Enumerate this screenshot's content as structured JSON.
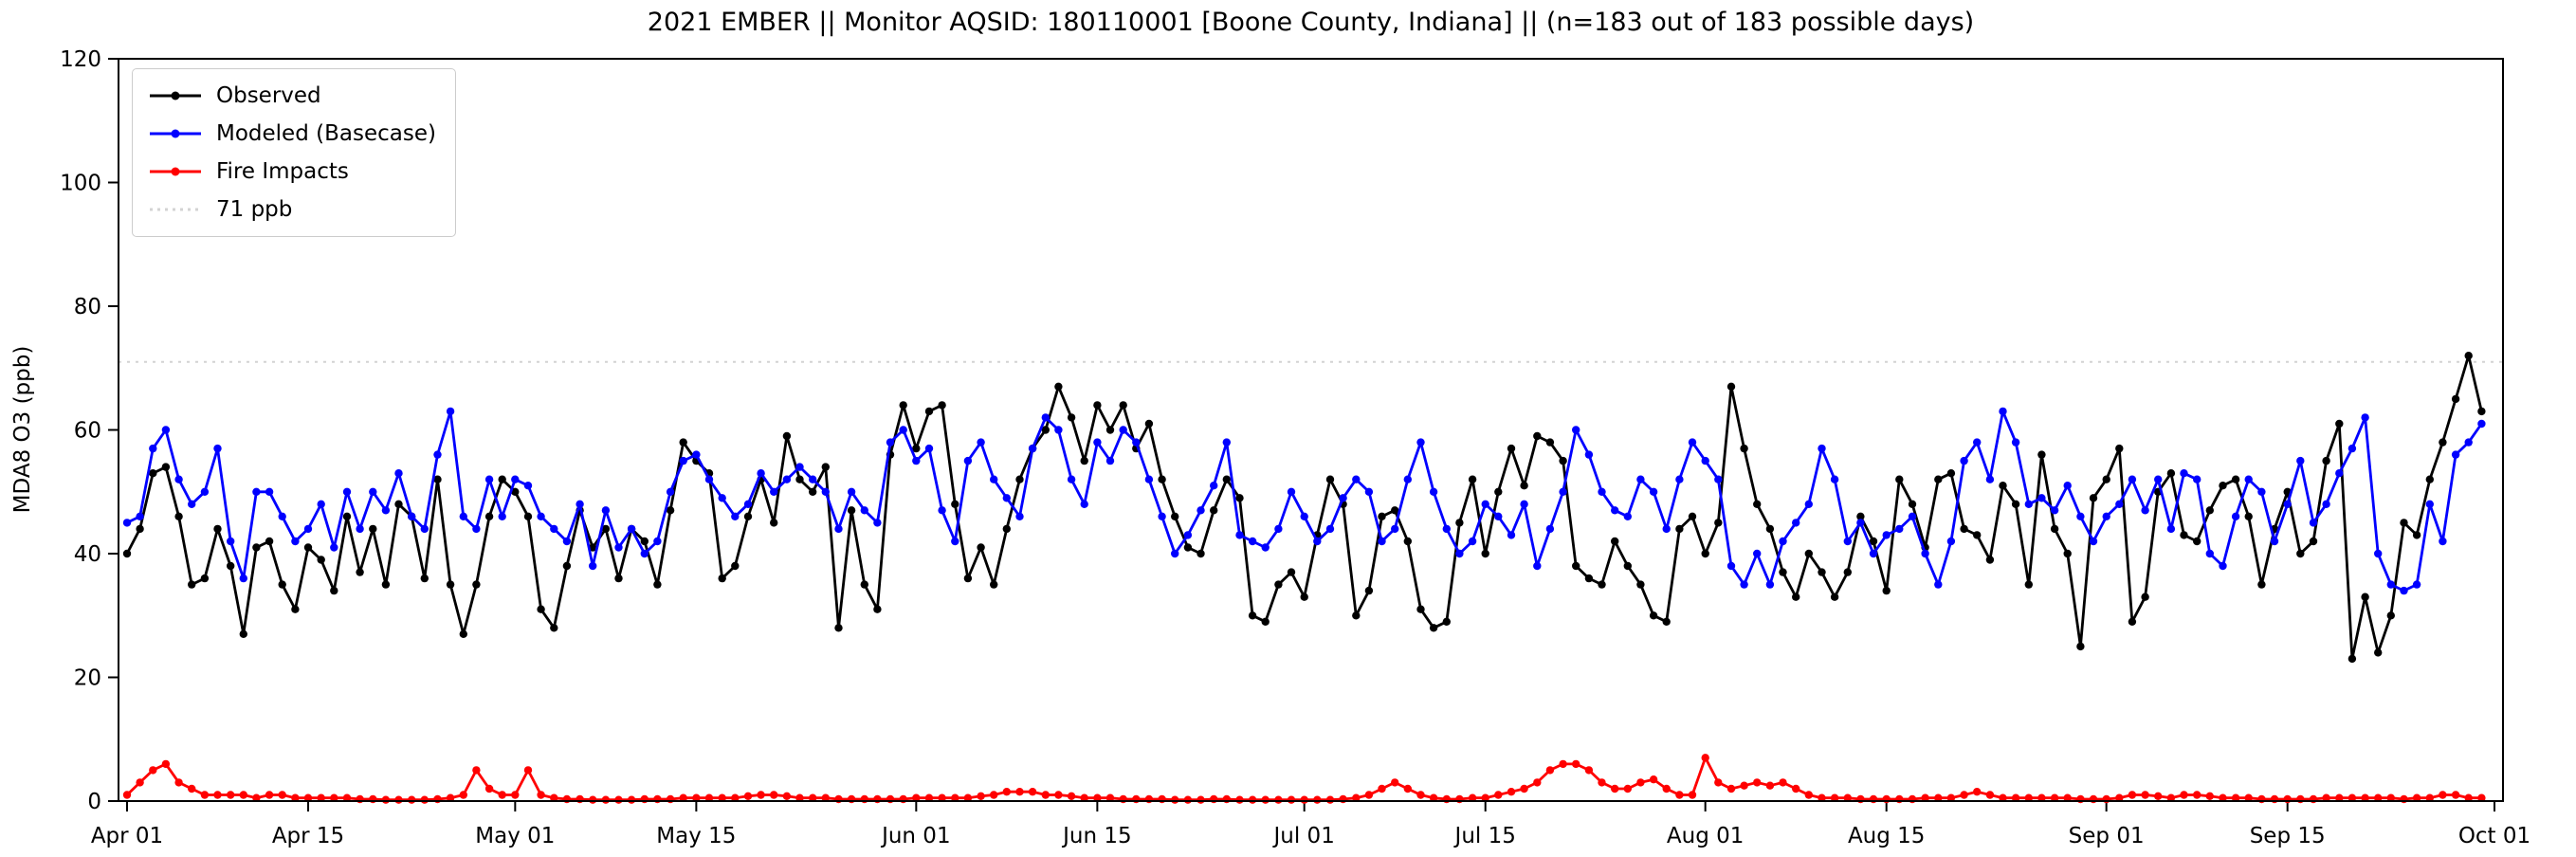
{
  "chart_data": {
    "type": "line",
    "title": "2021 EMBER || Monitor AQSID: 180110001 [Boone County, Indiana] || (n=183 out of 183 possible days)",
    "xlabel": "",
    "ylabel": "MDA8 O3 (ppb)",
    "ylim": [
      0,
      120
    ],
    "yticks": [
      0,
      20,
      40,
      60,
      80,
      100,
      120
    ],
    "n_days": 183,
    "x_unit": "days from Apr 01 to Oct 01, 2021",
    "grid": false,
    "marker": "circle",
    "legend_position": "upper left",
    "xticks": [
      {
        "day": 0,
        "label": "Apr 01"
      },
      {
        "day": 14,
        "label": "Apr 15"
      },
      {
        "day": 30,
        "label": "May 01"
      },
      {
        "day": 44,
        "label": "May 15"
      },
      {
        "day": 61,
        "label": "Jun 01"
      },
      {
        "day": 75,
        "label": "Jun 15"
      },
      {
        "day": 91,
        "label": "Jul 01"
      },
      {
        "day": 105,
        "label": "Jul 15"
      },
      {
        "day": 122,
        "label": "Aug 01"
      },
      {
        "day": 136,
        "label": "Aug 15"
      },
      {
        "day": 153,
        "label": "Sep 01"
      },
      {
        "day": 167,
        "label": "Sep 15"
      },
      {
        "day": 183,
        "label": "Oct 01"
      }
    ],
    "threshold_line": {
      "value": 71,
      "label": "71 ppb",
      "color": "#d3d3d3",
      "style": "dotted"
    },
    "legend": [
      {
        "label": "Observed",
        "color": "#000000",
        "line": "solid",
        "marker": true
      },
      {
        "label": "Modeled (Basecase)",
        "color": "#0000ff",
        "line": "solid",
        "marker": true
      },
      {
        "label": "Fire Impacts",
        "color": "#ff0000",
        "line": "solid",
        "marker": true
      },
      {
        "label": "71 ppb",
        "color": "#d3d3d3",
        "line": "dotted",
        "marker": false
      }
    ],
    "series": [
      {
        "name": "Observed",
        "color": "#000000",
        "values": [
          40,
          44,
          53,
          54,
          46,
          35,
          36,
          44,
          38,
          27,
          41,
          42,
          35,
          31,
          41,
          39,
          34,
          46,
          37,
          44,
          35,
          48,
          46,
          36,
          52,
          35,
          27,
          35,
          46,
          52,
          50,
          46,
          31,
          28,
          38,
          47,
          41,
          44,
          36,
          44,
          42,
          35,
          47,
          58,
          55,
          53,
          36,
          38,
          46,
          52,
          45,
          59,
          52,
          50,
          54,
          28,
          47,
          35,
          31,
          56,
          64,
          57,
          63,
          64,
          48,
          36,
          41,
          35,
          44,
          52,
          57,
          60,
          67,
          62,
          55,
          64,
          60,
          64,
          57,
          61,
          52,
          46,
          41,
          40,
          47,
          52,
          49,
          30,
          29,
          35,
          37,
          33,
          43,
          52,
          48,
          30,
          34,
          46,
          47,
          42,
          31,
          28,
          29,
          45,
          52,
          40,
          50,
          57,
          51,
          59,
          58,
          55,
          38,
          36,
          35,
          42,
          38,
          35,
          30,
          29,
          44,
          46,
          40,
          45,
          67,
          57,
          48,
          44,
          37,
          33,
          40,
          37,
          33,
          37,
          46,
          42,
          34,
          52,
          48,
          41,
          52,
          53,
          44,
          43,
          39,
          51,
          48,
          35,
          56,
          44,
          40,
          25,
          49,
          52,
          57,
          29,
          33,
          50,
          53,
          43,
          42,
          47,
          51,
          52,
          46,
          35,
          44,
          50,
          40,
          42,
          55,
          61,
          23,
          33,
          24,
          30,
          45,
          43,
          52,
          58,
          65,
          72,
          63
        ]
      },
      {
        "name": "Modeled (Basecase)",
        "color": "#0000ff",
        "values": [
          45,
          46,
          57,
          60,
          52,
          48,
          50,
          57,
          42,
          36,
          50,
          50,
          46,
          42,
          44,
          48,
          41,
          50,
          44,
          50,
          47,
          53,
          46,
          44,
          56,
          63,
          46,
          44,
          52,
          46,
          52,
          51,
          46,
          44,
          42,
          48,
          38,
          47,
          41,
          44,
          40,
          42,
          50,
          55,
          56,
          52,
          49,
          46,
          48,
          53,
          50,
          52,
          54,
          52,
          50,
          44,
          50,
          47,
          45,
          58,
          60,
          55,
          57,
          47,
          42,
          55,
          58,
          52,
          49,
          46,
          57,
          62,
          60,
          52,
          48,
          58,
          55,
          60,
          58,
          52,
          46,
          40,
          43,
          47,
          51,
          58,
          43,
          42,
          41,
          44,
          50,
          46,
          42,
          44,
          49,
          52,
          50,
          42,
          44,
          52,
          58,
          50,
          44,
          40,
          42,
          48,
          46,
          43,
          48,
          38,
          44,
          50,
          60,
          56,
          50,
          47,
          46,
          52,
          50,
          44,
          52,
          58,
          55,
          52,
          38,
          35,
          40,
          35,
          42,
          45,
          48,
          57,
          52,
          42,
          45,
          40,
          43,
          44,
          46,
          40,
          35,
          42,
          55,
          58,
          52,
          63,
          58,
          48,
          49,
          47,
          51,
          46,
          42,
          46,
          48,
          52,
          47,
          52,
          44,
          53,
          52,
          40,
          38,
          46,
          52,
          50,
          42,
          48,
          55,
          45,
          48,
          53,
          57,
          62,
          40,
          35,
          34,
          35,
          48,
          42,
          56,
          58,
          61
        ]
      },
      {
        "name": "Fire Impacts",
        "color": "#ff0000",
        "values": [
          1,
          3,
          5,
          6,
          3,
          2,
          1,
          1,
          1,
          1,
          0.5,
          1,
          1,
          0.5,
          0.5,
          0.5,
          0.5,
          0.5,
          0.3,
          0.3,
          0.2,
          0.2,
          0.2,
          0.2,
          0.3,
          0.5,
          1,
          5,
          2,
          1,
          1,
          5,
          1,
          0.5,
          0.3,
          0.3,
          0.2,
          0.2,
          0.2,
          0.2,
          0.3,
          0.3,
          0.3,
          0.5,
          0.5,
          0.5,
          0.5,
          0.5,
          0.8,
          1,
          1,
          0.8,
          0.5,
          0.5,
          0.5,
          0.3,
          0.3,
          0.3,
          0.3,
          0.3,
          0.3,
          0.5,
          0.5,
          0.5,
          0.5,
          0.5,
          0.8,
          1,
          1.5,
          1.5,
          1.5,
          1,
          1,
          0.8,
          0.5,
          0.5,
          0.5,
          0.3,
          0.3,
          0.3,
          0.3,
          0.2,
          0.2,
          0.2,
          0.3,
          0.3,
          0.2,
          0.2,
          0.2,
          0.2,
          0.2,
          0.2,
          0.2,
          0.2,
          0.3,
          0.5,
          1,
          2,
          3,
          2,
          1,
          0.5,
          0.3,
          0.3,
          0.5,
          0.5,
          1,
          1.5,
          2,
          3,
          5,
          6,
          6,
          5,
          3,
          2,
          2,
          3,
          3.5,
          2,
          1,
          1,
          7,
          3,
          2,
          2.5,
          3,
          2.5,
          3,
          2,
          1,
          0.5,
          0.5,
          0.5,
          0.3,
          0.3,
          0.3,
          0.3,
          0.3,
          0.5,
          0.5,
          0.5,
          1,
          1.5,
          1,
          0.5,
          0.5,
          0.5,
          0.5,
          0.5,
          0.5,
          0.3,
          0.3,
          0.3,
          0.5,
          1,
          1,
          0.8,
          0.5,
          1,
          1,
          0.8,
          0.5,
          0.5,
          0.5,
          0.3,
          0.3,
          0.3,
          0.3,
          0.3,
          0.5,
          0.5,
          0.5,
          0.5,
          0.5,
          0.5,
          0.3,
          0.5,
          0.5,
          1,
          1,
          0.5,
          0.5
        ]
      }
    ]
  }
}
